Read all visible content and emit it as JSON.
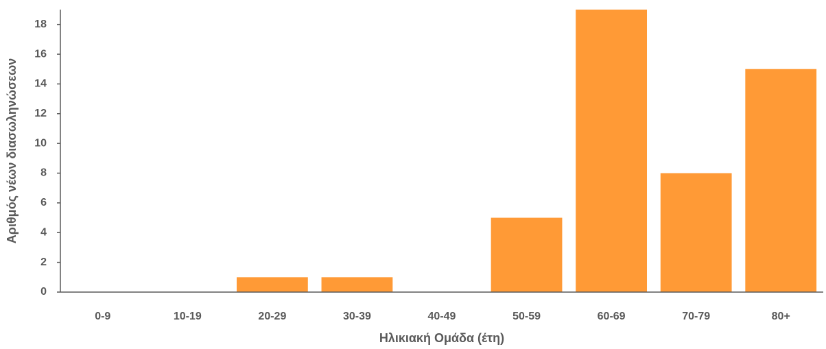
{
  "chart_data": {
    "type": "bar",
    "x_label": "Ηλικιακή Ομάδα (έτη)",
    "y_label": "Αριθμός νέων διασωληνώσεων",
    "categories": [
      "0-9",
      "10-19",
      "20-29",
      "30-39",
      "40-49",
      "50-59",
      "60-69",
      "70-79",
      "80+"
    ],
    "values": [
      0,
      0,
      1,
      1,
      0,
      5,
      19,
      8,
      15
    ],
    "color": "#ff9a36",
    "ylim": [
      0,
      19
    ],
    "yticks": [
      0,
      2,
      4,
      6,
      8,
      10,
      12,
      14,
      16,
      18
    ],
    "grid": false
  }
}
